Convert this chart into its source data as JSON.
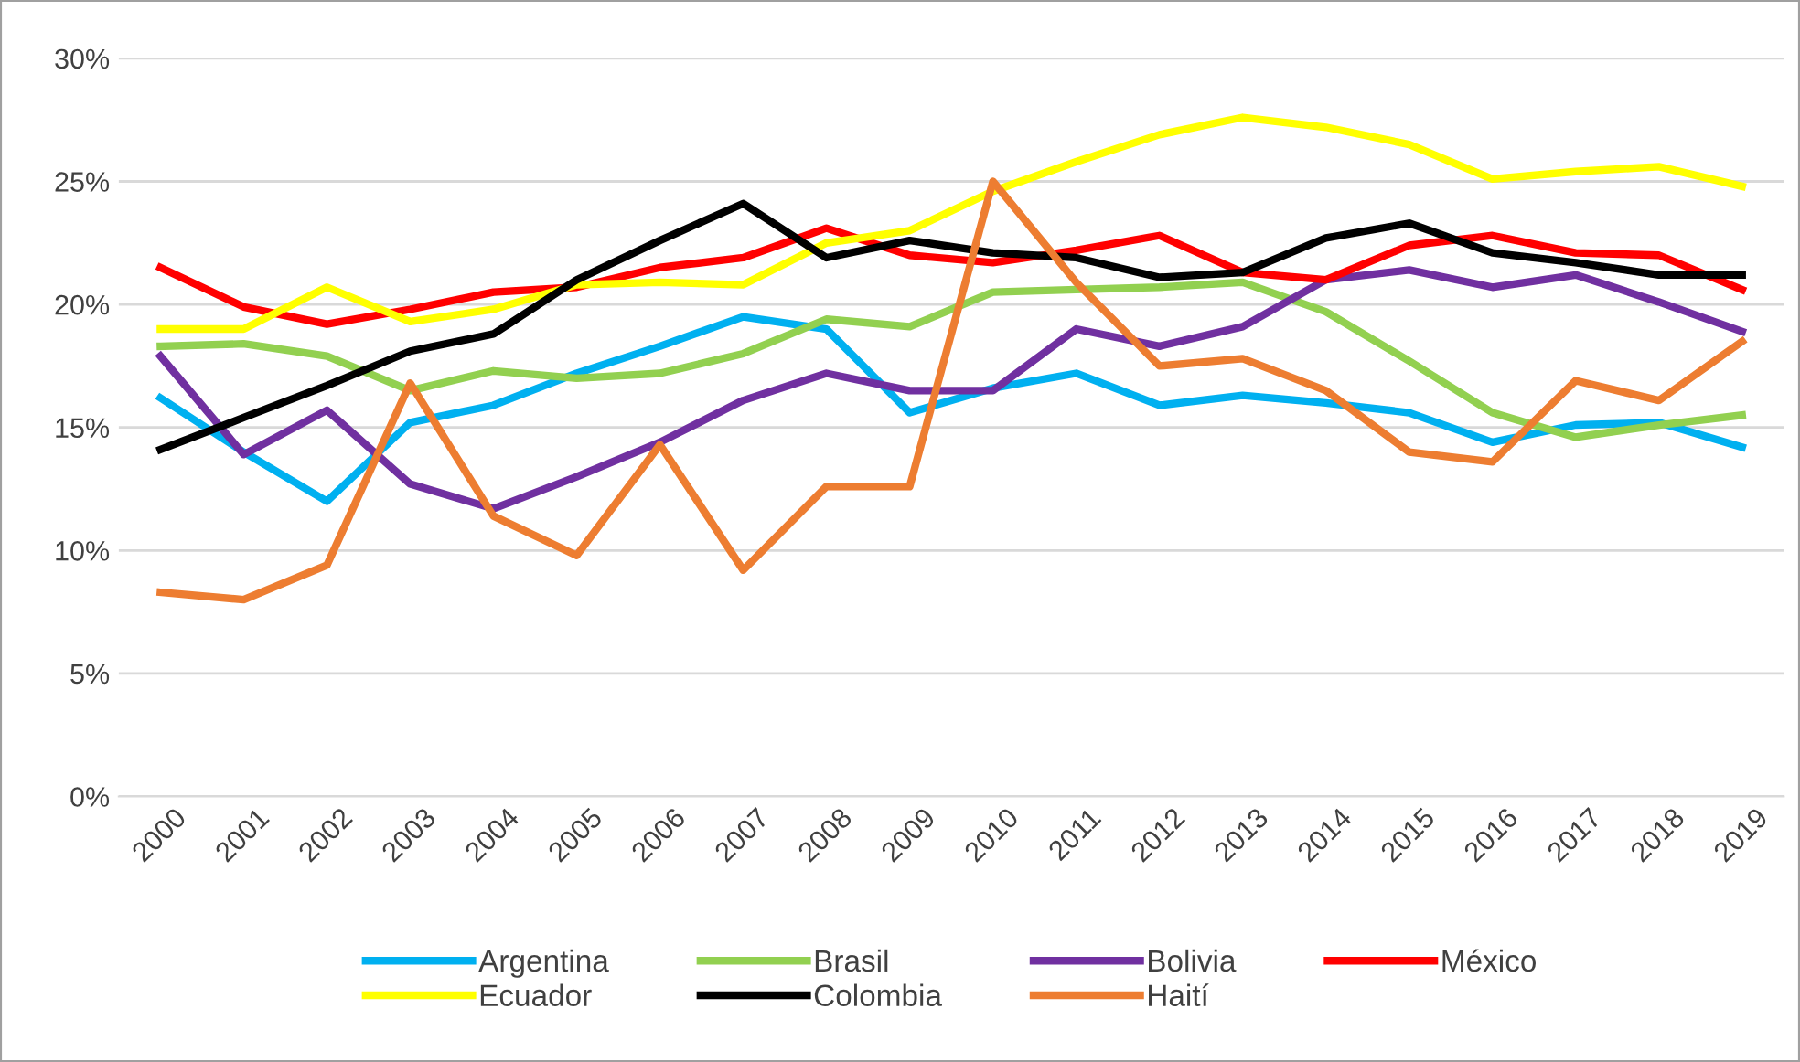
{
  "chart_data": {
    "type": "line",
    "categories": [
      "2000",
      "2001",
      "2002",
      "2003",
      "2004",
      "2005",
      "2006",
      "2007",
      "2008",
      "2009",
      "2010",
      "2011",
      "2012",
      "2013",
      "2014",
      "2015",
      "2016",
      "2017",
      "2018",
      "2019"
    ],
    "series": [
      {
        "name": "Argentina",
        "color": "#00b0f0",
        "values": [
          16.2,
          14.0,
          12.0,
          15.2,
          15.9,
          17.2,
          18.3,
          19.5,
          19.0,
          15.6,
          16.6,
          17.2,
          15.9,
          16.3,
          16.0,
          15.6,
          14.4,
          15.1,
          15.2,
          14.2
        ]
      },
      {
        "name": "Brasil",
        "color": "#92d050",
        "values": [
          18.3,
          18.4,
          17.9,
          16.5,
          17.3,
          17.0,
          17.2,
          18.0,
          19.4,
          19.1,
          20.5,
          20.6,
          20.7,
          20.9,
          19.7,
          17.7,
          15.6,
          14.6,
          15.1,
          15.5
        ]
      },
      {
        "name": "Bolivia",
        "color": "#7030a0",
        "values": [
          17.9,
          13.9,
          15.7,
          12.7,
          11.7,
          13.0,
          14.4,
          16.1,
          17.2,
          16.5,
          16.5,
          19.0,
          18.3,
          19.1,
          21.0,
          21.4,
          20.7,
          21.2,
          20.1,
          18.9
        ]
      },
      {
        "name": "México",
        "color": "#ff0000",
        "values": [
          21.5,
          19.9,
          19.2,
          19.8,
          20.5,
          20.7,
          21.5,
          21.9,
          23.1,
          22.0,
          21.7,
          22.2,
          22.8,
          21.3,
          21.0,
          22.4,
          22.8,
          22.1,
          22.0,
          20.6
        ]
      },
      {
        "name": "Ecuador",
        "color": "#ffff00",
        "values": [
          19.0,
          19.0,
          20.7,
          19.3,
          19.8,
          20.8,
          20.9,
          20.8,
          22.5,
          23.0,
          24.6,
          25.8,
          26.9,
          27.6,
          27.2,
          26.5,
          25.1,
          25.4,
          25.6,
          24.8
        ]
      },
      {
        "name": "Colombia",
        "color": "#000000",
        "values": [
          14.1,
          15.4,
          16.7,
          18.1,
          18.8,
          21.0,
          22.6,
          24.1,
          21.9,
          22.6,
          22.1,
          21.9,
          21.1,
          21.3,
          22.7,
          23.3,
          22.1,
          21.7,
          21.2,
          21.2
        ]
      },
      {
        "name": "Haití",
        "color": "#ed7d31",
        "values": [
          8.3,
          8.0,
          9.4,
          16.8,
          11.4,
          9.8,
          14.3,
          9.2,
          12.6,
          12.6,
          25.0,
          20.9,
          17.5,
          17.8,
          16.5,
          14.0,
          13.6,
          16.9,
          16.1,
          18.5
        ]
      }
    ],
    "ylim": [
      0,
      30
    ],
    "yticks": [
      {
        "value": 0,
        "label": "0%"
      },
      {
        "value": 5,
        "label": "5%"
      },
      {
        "value": 10,
        "label": "10%"
      },
      {
        "value": 15,
        "label": "15%"
      },
      {
        "value": 20,
        "label": "20%"
      },
      {
        "value": 25,
        "label": "25%"
      },
      {
        "value": 30,
        "label": "30%"
      }
    ],
    "grid": "y",
    "legend": "bottom",
    "marker": "none",
    "line_style": "solid"
  }
}
